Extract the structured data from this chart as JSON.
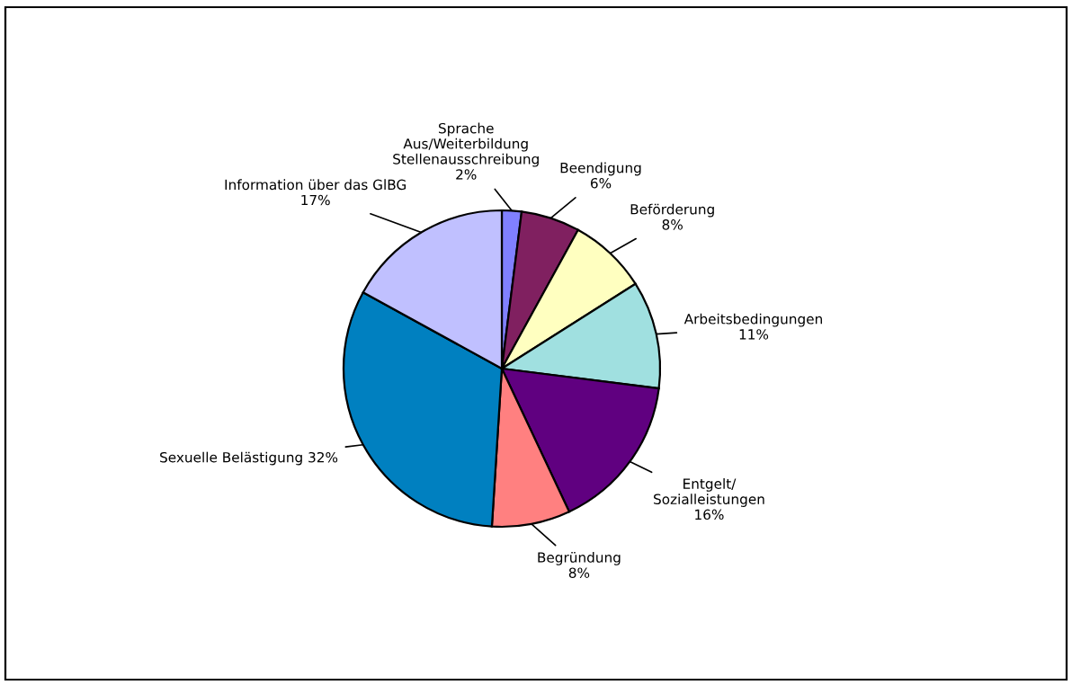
{
  "chart_data": {
    "type": "pie",
    "categories": [
      "Sprache\nAus/Weiterbildung\nStellenausschreibung",
      "Beendigung",
      "Beförderung",
      "Arbeitsbedingungen",
      "Entgelt/\nSozialleistungen",
      "Begründung",
      "Sexuelle Belästigung",
      "Information über das GlBG"
    ],
    "values": [
      2,
      6,
      8,
      11,
      16,
      8,
      32,
      17
    ],
    "value_labels": [
      "2%",
      "6%",
      "8%",
      "11%",
      "16%",
      "8%",
      "32%",
      "17%"
    ],
    "colors": [
      "#8080ff",
      "#802060",
      "#ffffc0",
      "#a0e0e0",
      "#600080",
      "#ff8080",
      "#0080c0",
      "#c0c0ff"
    ],
    "legend": false
  }
}
